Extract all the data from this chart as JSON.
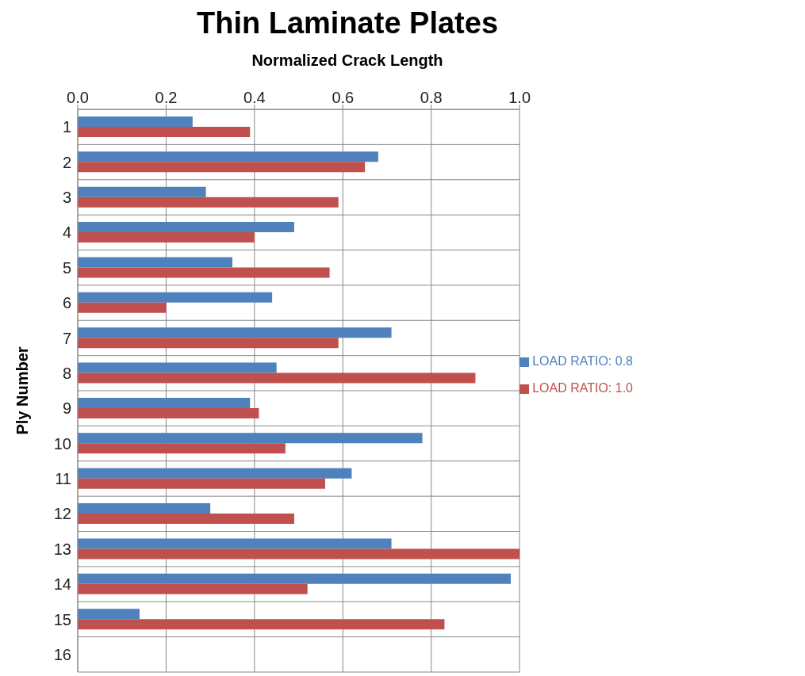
{
  "chart_data": {
    "type": "bar",
    "orientation": "horizontal",
    "title": "Thin Laminate Plates",
    "xlabel": "Normalized Crack Length",
    "ylabel": "Ply Number",
    "categories": [
      "1",
      "2",
      "3",
      "4",
      "5",
      "6",
      "7",
      "8",
      "9",
      "10",
      "11",
      "12",
      "13",
      "14",
      "15",
      "16"
    ],
    "series": [
      {
        "name": "LOAD RATIO: 0.8",
        "color": "#4f81bd",
        "values": [
          0.26,
          0.68,
          0.29,
          0.49,
          0.35,
          0.44,
          0.71,
          0.45,
          0.39,
          0.78,
          0.62,
          0.3,
          0.71,
          0.98,
          0.14,
          null
        ]
      },
      {
        "name": "LOAD RATIO: 1.0",
        "color": "#c0504d",
        "values": [
          0.39,
          0.65,
          0.59,
          0.4,
          0.57,
          0.2,
          0.59,
          0.9,
          0.41,
          0.47,
          0.56,
          0.49,
          1.0,
          0.52,
          0.83,
          null
        ]
      }
    ],
    "xlim": [
      0,
      1
    ],
    "xticks": [
      {
        "value": 0,
        "label": "0.0"
      },
      {
        "value": 0.2,
        "label": "0.2"
      },
      {
        "value": 0.4,
        "label": "0.4"
      },
      {
        "value": 0.6,
        "label": "0.6"
      },
      {
        "value": 0.8,
        "label": "0.8"
      },
      {
        "value": 1,
        "label": "1.0"
      }
    ],
    "grid": true,
    "legend": "right"
  }
}
